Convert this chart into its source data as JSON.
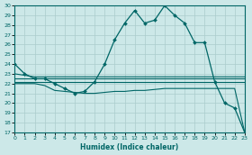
{
  "xlabel": "Humidex (Indice chaleur)",
  "bg_color": "#cce8e8",
  "grid_color": "#aacccc",
  "line_color": "#006666",
  "ylim": [
    17,
    30
  ],
  "xlim": [
    0,
    23
  ],
  "yticks": [
    17,
    18,
    19,
    20,
    21,
    22,
    23,
    24,
    25,
    26,
    27,
    28,
    29,
    30
  ],
  "xticks": [
    0,
    1,
    2,
    3,
    4,
    5,
    6,
    7,
    8,
    9,
    10,
    11,
    12,
    13,
    14,
    15,
    16,
    17,
    18,
    19,
    20,
    21,
    22,
    23
  ],
  "series": [
    {
      "x": [
        0,
        1,
        2,
        3,
        4,
        5,
        6,
        7,
        8,
        9,
        10,
        11,
        12,
        13,
        14,
        15,
        16,
        17,
        18,
        19,
        20,
        21,
        22,
        23
      ],
      "y": [
        24,
        23,
        22.5,
        22.5,
        22,
        21.5,
        21,
        21.2,
        22.2,
        24,
        26.5,
        28.2,
        29.5,
        28.2,
        28.5,
        30,
        29,
        28.2,
        26.2,
        26.2,
        22.2,
        20,
        19.5,
        17
      ],
      "marker": true,
      "lw": 0.9
    },
    {
      "x": [
        0,
        2,
        9,
        20,
        23
      ],
      "y": [
        23,
        22.7,
        22.7,
        22.7,
        22.7
      ],
      "marker": false,
      "lw": 0.8
    },
    {
      "x": [
        0,
        2,
        9,
        20,
        23
      ],
      "y": [
        22.5,
        22.5,
        22.5,
        22.5,
        22.5
      ],
      "marker": false,
      "lw": 0.8
    },
    {
      "x": [
        0,
        2,
        9,
        20,
        23
      ],
      "y": [
        22.2,
        22.2,
        22.2,
        22.2,
        22.2
      ],
      "marker": false,
      "lw": 0.8
    },
    {
      "x": [
        0,
        1,
        2,
        3,
        4,
        5,
        6,
        7,
        8,
        9,
        10,
        11,
        12,
        13,
        14,
        15,
        16,
        17,
        18,
        19,
        20,
        21,
        22,
        23
      ],
      "y": [
        22,
        22,
        22,
        21.8,
        21.3,
        21.2,
        21.1,
        21.0,
        21.0,
        21.1,
        21.2,
        21.2,
        21.3,
        21.3,
        21.4,
        21.5,
        21.5,
        21.5,
        21.5,
        21.5,
        21.5,
        21.5,
        21.5,
        17
      ],
      "marker": false,
      "lw": 0.8
    }
  ]
}
